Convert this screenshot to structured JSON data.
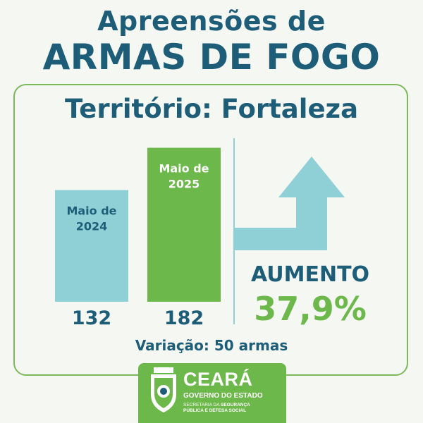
{
  "header": {
    "line1": "Apreensões de",
    "line2": "ARMAS DE FOGO"
  },
  "territory": "Território: Fortaleza",
  "chart_data": {
    "type": "bar",
    "categories": [
      "Maio de 2024",
      "Maio de 2025"
    ],
    "category_lines": [
      [
        "Maio de",
        "2024"
      ],
      [
        "Maio de",
        "2025"
      ]
    ],
    "values": [
      132,
      182
    ],
    "value_labels": [
      "132",
      "182"
    ],
    "bar_colors": [
      "#8fd0d6",
      "#6db84a"
    ],
    "label_colors": [
      "#1e5d78",
      "#ffffff"
    ]
  },
  "result": {
    "label": "AUMENTO",
    "percent": "37,9%",
    "arrow_color": "#8fd0d6"
  },
  "variation": "Variação: 50 armas",
  "logo": {
    "name": "CEARÁ",
    "subtitle": "GOVERNO DO ESTADO",
    "secretaria_prefix": "SECRETARIA DA ",
    "secretaria_bold_1": "SEGURANÇA",
    "secretaria_bold_2": "PÚBLICA E DEFESA SOCIAL"
  },
  "colors": {
    "primary": "#1e5d78",
    "accent_green": "#6db84a",
    "accent_cyan": "#8fd0d6",
    "background": "#f4f7f2"
  }
}
